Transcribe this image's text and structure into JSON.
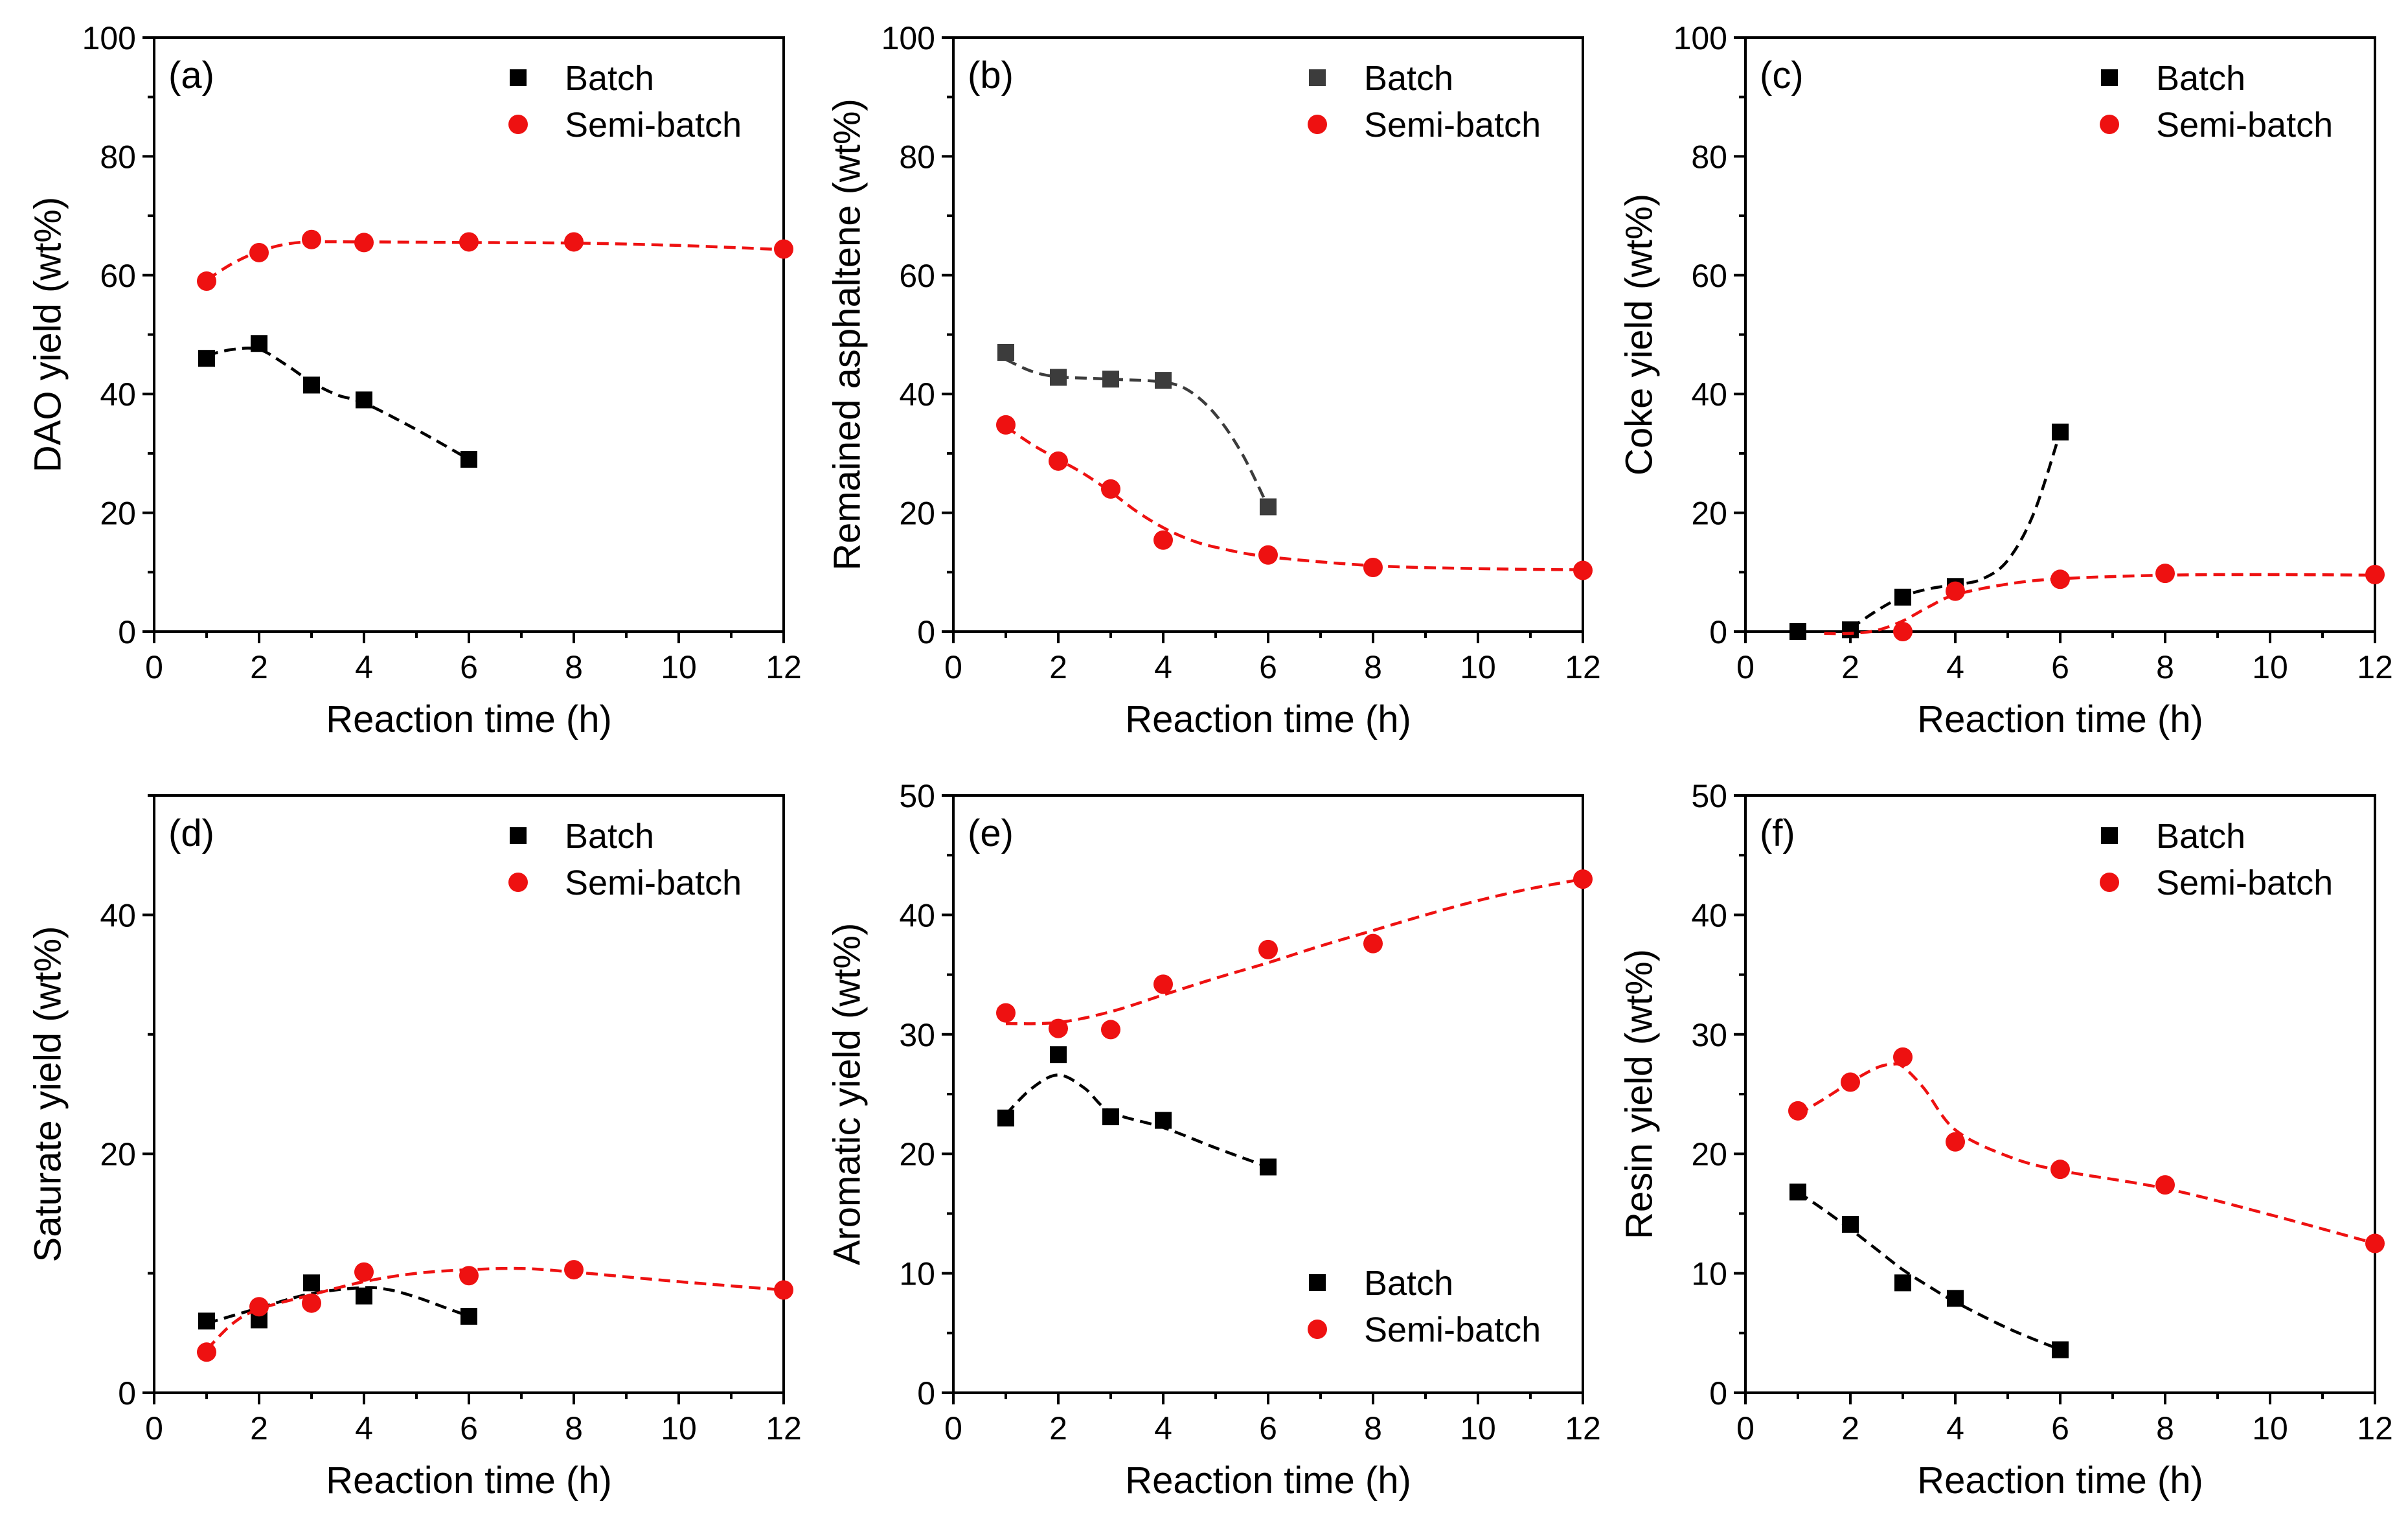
{
  "colors": {
    "batch": "#000000",
    "batch_b": "#3c3c3c",
    "semi": "#ee1111",
    "semi_line": "#ee1111"
  },
  "legend_labels": {
    "batch": "Batch",
    "semi": "Semi-batch"
  },
  "chart_data": [
    {
      "id": "a",
      "type": "scatter",
      "panel_label": "(a)",
      "xlabel": "Reaction time (h)",
      "ylabel": "DAO yield (wt%)",
      "xlim": [
        0,
        12
      ],
      "ylim": [
        0,
        100
      ],
      "xticks": [
        0,
        2,
        4,
        6,
        8,
        10,
        12
      ],
      "yticks": [
        0,
        20,
        40,
        60,
        80,
        100
      ],
      "legend_position": "top-right",
      "series": [
        {
          "name": "Batch",
          "marker": "square",
          "color": "#000000",
          "x": [
            1,
            2,
            3,
            4,
            6
          ],
          "y": [
            46,
            48.5,
            41.5,
            39,
            29
          ],
          "fit": {
            "x": [
              1,
              1.5,
              2,
              2.5,
              3,
              3.5,
              4,
              5,
              6
            ],
            "y": [
              46.5,
              47.5,
              47.5,
              45,
              42,
              39.8,
              38.5,
              34,
              29
            ]
          }
        },
        {
          "name": "Semi-batch",
          "marker": "circle",
          "color": "#ee1111",
          "x": [
            1,
            2,
            3,
            4,
            6,
            8,
            12
          ],
          "y": [
            59,
            63.8,
            66,
            65.5,
            65.6,
            65.6,
            64.4
          ],
          "fit": {
            "x": [
              1,
              1.5,
              2,
              2.5,
              3,
              4,
              6,
              8,
              10,
              12
            ],
            "y": [
              59.2,
              62,
              64,
              65.2,
              65.6,
              65.6,
              65.5,
              65.4,
              65,
              64.3
            ]
          }
        }
      ]
    },
    {
      "id": "b",
      "type": "scatter",
      "panel_label": "(b)",
      "xlabel": "Reaction time (h)",
      "ylabel": "Remained asphaltene (wt%)",
      "xlim": [
        0,
        12
      ],
      "ylim": [
        0,
        100
      ],
      "xticks": [
        0,
        2,
        4,
        6,
        8,
        10,
        12
      ],
      "yticks": [
        0,
        20,
        40,
        60,
        80,
        100
      ],
      "legend_position": "top-right",
      "series": [
        {
          "name": "Batch",
          "marker": "square",
          "color": "#3c3c3c",
          "x": [
            1,
            2,
            3,
            4,
            6
          ],
          "y": [
            47,
            42.8,
            42.5,
            42.3,
            21
          ],
          "fit": {
            "x": [
              1,
              1.5,
              2,
              3,
              4,
              4.5,
              5,
              5.5,
              6
            ],
            "y": [
              45.8,
              43.8,
              42.9,
              42.5,
              42,
              40.5,
              36.5,
              30,
              21
            ]
          }
        },
        {
          "name": "Semi-batch",
          "marker": "circle",
          "color": "#ee1111",
          "x": [
            1,
            2,
            3,
            4,
            6,
            8,
            12
          ],
          "y": [
            34.8,
            28.7,
            24,
            15.4,
            12.9,
            10.8,
            10.3
          ],
          "fit": {
            "x": [
              1,
              1.5,
              2,
              2.5,
              3,
              3.5,
              4,
              4.5,
              5,
              6,
              8,
              10,
              12
            ],
            "y": [
              34.5,
              31.5,
              29,
              26.5,
              23.5,
              20.2,
              17.5,
              15.5,
              14.2,
              12.6,
              11.1,
              10.6,
              10.4
            ]
          }
        }
      ]
    },
    {
      "id": "c",
      "type": "scatter",
      "panel_label": "(c)",
      "xlabel": "Reaction time (h)",
      "ylabel": "Coke yield (wt%)",
      "xlim": [
        0,
        12
      ],
      "ylim": [
        0,
        100
      ],
      "xticks": [
        0,
        2,
        4,
        6,
        8,
        10,
        12
      ],
      "yticks": [
        0,
        20,
        40,
        60,
        80,
        100
      ],
      "legend_position": "top-right",
      "series": [
        {
          "name": "Batch",
          "marker": "square",
          "color": "#000000",
          "x": [
            1,
            2,
            3,
            4,
            6
          ],
          "y": [
            0,
            0.3,
            5.8,
            7.6,
            33.6
          ],
          "fit": {
            "x": [
              2,
              2.5,
              3,
              3.5,
              4,
              4.5,
              5,
              5.5,
              6
            ],
            "y": [
              0.5,
              3.5,
              5.9,
              7.2,
              7.9,
              8.8,
              12,
              20,
              33.6
            ]
          }
        },
        {
          "name": "Semi-batch",
          "marker": "circle",
          "color": "#ee1111",
          "x": [
            3,
            4,
            6,
            8,
            12
          ],
          "y": [
            0,
            6.8,
            8.8,
            9.8,
            9.6
          ],
          "fit": {
            "x": [
              1.5,
              2,
              2.5,
              3,
              3.5,
              4,
              5,
              6,
              8,
              10,
              12
            ],
            "y": [
              -0.3,
              -0.3,
              0.2,
              1.8,
              4.2,
              6.2,
              8,
              8.9,
              9.5,
              9.6,
              9.5
            ]
          }
        }
      ]
    },
    {
      "id": "d",
      "type": "scatter",
      "panel_label": "(d)",
      "xlabel": "Reaction time (h)",
      "ylabel": "Saturate yield (wt%)",
      "xlim": [
        0,
        12
      ],
      "ylim": [
        0,
        50
      ],
      "xticks": [
        0,
        2,
        4,
        6,
        8,
        10,
        12
      ],
      "yticks": [
        0,
        20,
        40
      ],
      "legend_position": "top-right",
      "series": [
        {
          "name": "Batch",
          "marker": "square",
          "color": "#000000",
          "x": [
            1,
            2,
            3,
            4,
            6
          ],
          "y": [
            6,
            6.1,
            9.2,
            8.1,
            6.4
          ],
          "fit": {
            "x": [
              1,
              2,
              3,
              4,
              4.5,
              5,
              5.5,
              6
            ],
            "y": [
              5.8,
              7.1,
              8.3,
              8.8,
              8.6,
              8,
              7.2,
              6.4
            ]
          }
        },
        {
          "name": "Semi-batch",
          "marker": "circle",
          "color": "#ee1111",
          "x": [
            1,
            2,
            3,
            4,
            6,
            8,
            12
          ],
          "y": [
            3.4,
            7.2,
            7.5,
            10.1,
            9.8,
            10.3,
            8.6
          ],
          "fit": {
            "x": [
              1,
              1.5,
              2,
              3,
              4,
              5,
              6,
              7,
              8,
              10,
              12
            ],
            "y": [
              3.6,
              5.8,
              7,
              8.2,
              9.3,
              10,
              10.3,
              10.4,
              10.1,
              9.3,
              8.6
            ]
          }
        }
      ]
    },
    {
      "id": "e",
      "type": "scatter",
      "panel_label": "(e)",
      "xlabel": "Reaction time (h)",
      "ylabel": "Aromatic yield (wt%)",
      "xlim": [
        0,
        12
      ],
      "ylim": [
        0,
        50
      ],
      "xticks": [
        0,
        2,
        4,
        6,
        8,
        10,
        12
      ],
      "yticks": [
        0,
        10,
        20,
        30,
        40,
        50
      ],
      "legend_position": "bottom-right",
      "series": [
        {
          "name": "Batch",
          "marker": "square",
          "color": "#000000",
          "x": [
            1,
            2,
            3,
            4,
            6
          ],
          "y": [
            23,
            28.3,
            23.1,
            22.8,
            18.9
          ],
          "fit": {
            "x": [
              1,
              1.5,
              2,
              2.5,
              3,
              4,
              5,
              6
            ],
            "y": [
              23.3,
              25.5,
              26.6,
              25.5,
              23.5,
              22.2,
              20.5,
              18.9
            ]
          }
        },
        {
          "name": "Semi-batch",
          "marker": "circle",
          "color": "#ee1111",
          "x": [
            1,
            2,
            3,
            4,
            6,
            8,
            12
          ],
          "y": [
            31.8,
            30.5,
            30.4,
            34.2,
            37.1,
            37.6,
            43
          ],
          "fit": {
            "x": [
              1,
              2,
              3,
              4,
              5,
              6,
              7,
              8,
              9,
              10,
              11,
              12
            ],
            "y": [
              30.9,
              31,
              31.9,
              33.3,
              34.7,
              36,
              37.4,
              38.7,
              40,
              41.2,
              42.2,
              43
            ]
          }
        }
      ]
    },
    {
      "id": "f",
      "type": "scatter",
      "panel_label": "(f)",
      "xlabel": "Reaction time (h)",
      "ylabel": "Resin yield (wt%)",
      "xlim": [
        0,
        12
      ],
      "ylim": [
        0,
        50
      ],
      "xticks": [
        0,
        2,
        4,
        6,
        8,
        10,
        12
      ],
      "yticks": [
        0,
        10,
        20,
        30,
        40,
        50
      ],
      "legend_position": "top-right",
      "series": [
        {
          "name": "Batch",
          "marker": "square",
          "color": "#000000",
          "x": [
            1,
            2,
            3,
            4,
            6
          ],
          "y": [
            16.8,
            14.1,
            9.2,
            7.9,
            3.6
          ],
          "fit": {
            "x": [
              1,
              1.5,
              2,
              2.5,
              3,
              3.5,
              4,
              5,
              6
            ],
            "y": [
              16.8,
              15.3,
              13.7,
              12,
              10.3,
              8.9,
              7.6,
              5.4,
              3.6
            ]
          }
        },
        {
          "name": "Semi-batch",
          "marker": "circle",
          "color": "#ee1111",
          "x": [
            1,
            2,
            3,
            4,
            6,
            8,
            12
          ],
          "y": [
            23.6,
            26,
            28.1,
            21,
            18.7,
            17.4,
            12.5
          ],
          "fit": {
            "x": [
              1,
              1.5,
              2,
              2.5,
              2.8,
              3,
              3.4,
              4,
              5,
              6,
              8,
              10,
              12
            ],
            "y": [
              23.3,
              24.6,
              26,
              27.2,
              27.5,
              27.3,
              25.5,
              22,
              19.8,
              18.6,
              17.1,
              14.9,
              12.5
            ]
          }
        }
      ]
    }
  ]
}
